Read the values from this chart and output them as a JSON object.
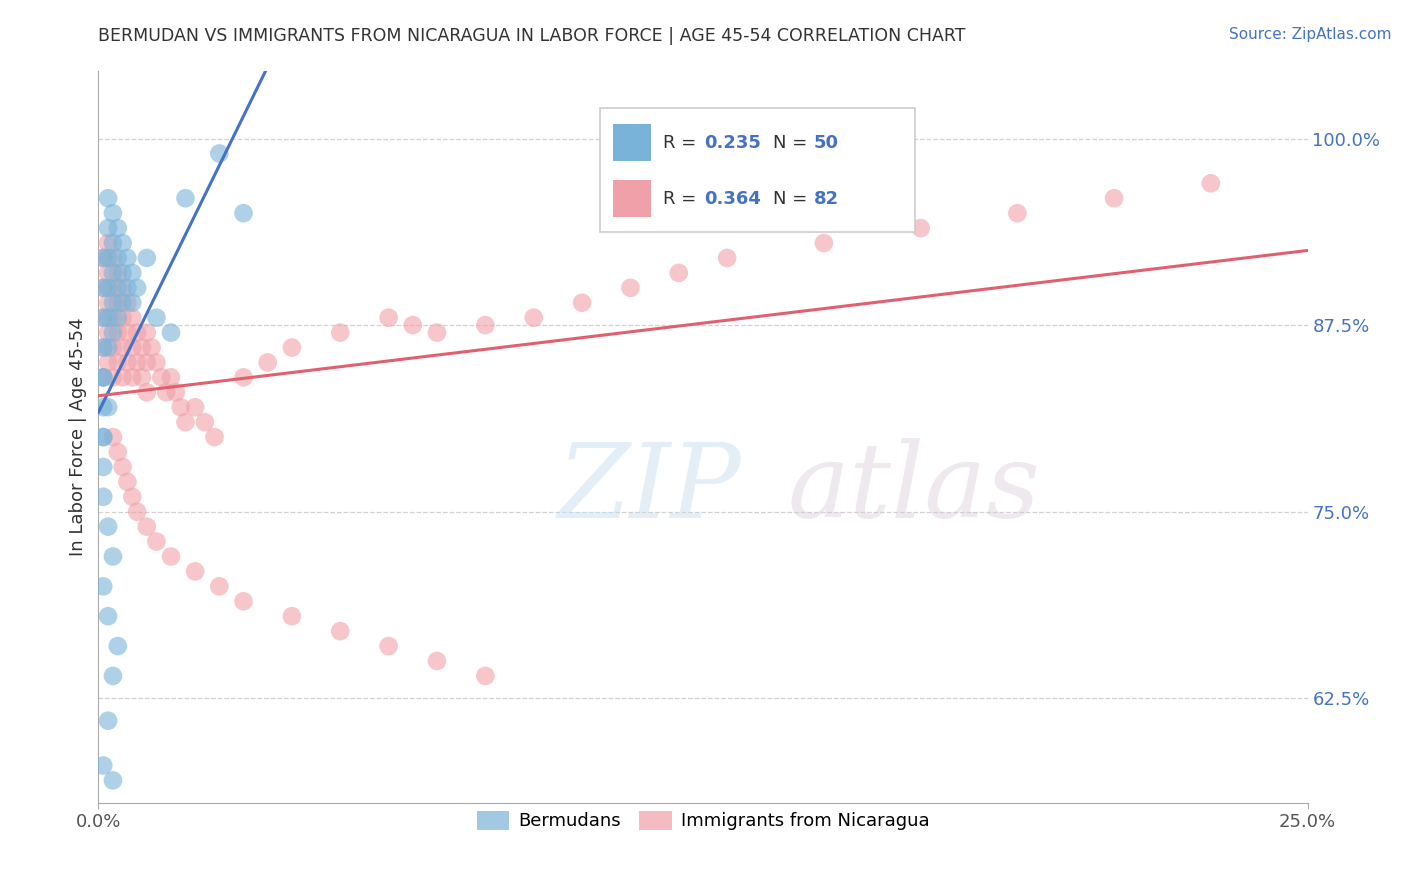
{
  "title": "BERMUDAN VS IMMIGRANTS FROM NICARAGUA IN LABOR FORCE | AGE 45-54 CORRELATION CHART",
  "source": "Source: ZipAtlas.com",
  "ylabel": "In Labor Force | Age 45-54",
  "legend_blue_r": "0.235",
  "legend_blue_n": "50",
  "legend_pink_r": "0.364",
  "legend_pink_n": "82",
  "legend_blue_label": "Bermudans",
  "legend_pink_label": "Immigrants from Nicaragua",
  "title_color": "#333333",
  "source_color": "#4472c4",
  "blue_color": "#7ab3d9",
  "pink_color": "#f0a0a8",
  "blue_line_color": "#4472c4",
  "pink_line_color": "#e06070",
  "grid_color": "#cccccc",
  "background_color": "#ffffff",
  "xlim": [
    0.0,
    0.25
  ],
  "ylim": [
    0.555,
    1.045
  ],
  "yticks": [
    0.625,
    0.75,
    0.875,
    1.0
  ],
  "ytick_labels": [
    "62.5%",
    "75.0%",
    "87.5%",
    "100.0%"
  ],
  "xticks": [
    0.0,
    0.25
  ],
  "xtick_labels": [
    "0.0%",
    "25.0%"
  ],
  "blue_x": [
    0.001,
    0.001,
    0.001,
    0.001,
    0.001,
    0.001,
    0.001,
    0.001,
    0.002,
    0.002,
    0.002,
    0.002,
    0.002,
    0.002,
    0.003,
    0.003,
    0.003,
    0.003,
    0.003,
    0.004,
    0.004,
    0.004,
    0.004,
    0.005,
    0.005,
    0.005,
    0.006,
    0.006,
    0.007,
    0.007,
    0.008,
    0.01,
    0.012,
    0.015,
    0.018,
    0.025,
    0.03,
    0.001,
    0.002,
    0.003,
    0.001,
    0.002,
    0.001,
    0.001,
    0.002,
    0.001,
    0.002,
    0.003,
    0.004,
    0.003
  ],
  "blue_y": [
    0.92,
    0.9,
    0.88,
    0.86,
    0.84,
    0.82,
    0.8,
    0.78,
    0.96,
    0.94,
    0.92,
    0.9,
    0.88,
    0.86,
    0.95,
    0.93,
    0.91,
    0.89,
    0.87,
    0.94,
    0.92,
    0.9,
    0.88,
    0.93,
    0.91,
    0.89,
    0.92,
    0.9,
    0.91,
    0.89,
    0.9,
    0.92,
    0.88,
    0.87,
    0.96,
    0.99,
    0.95,
    0.76,
    0.74,
    0.72,
    0.7,
    0.68,
    0.8,
    0.84,
    0.82,
    0.58,
    0.61,
    0.64,
    0.66,
    0.57
  ],
  "pink_x": [
    0.001,
    0.001,
    0.001,
    0.001,
    0.001,
    0.002,
    0.002,
    0.002,
    0.002,
    0.002,
    0.003,
    0.003,
    0.003,
    0.003,
    0.003,
    0.004,
    0.004,
    0.004,
    0.004,
    0.005,
    0.005,
    0.005,
    0.005,
    0.006,
    0.006,
    0.006,
    0.007,
    0.007,
    0.007,
    0.008,
    0.008,
    0.009,
    0.009,
    0.01,
    0.01,
    0.01,
    0.011,
    0.012,
    0.013,
    0.014,
    0.015,
    0.016,
    0.017,
    0.018,
    0.02,
    0.022,
    0.024,
    0.03,
    0.035,
    0.04,
    0.05,
    0.06,
    0.065,
    0.07,
    0.08,
    0.09,
    0.1,
    0.11,
    0.12,
    0.13,
    0.15,
    0.17,
    0.19,
    0.21,
    0.23,
    0.003,
    0.004,
    0.005,
    0.006,
    0.007,
    0.008,
    0.01,
    0.012,
    0.015,
    0.02,
    0.025,
    0.03,
    0.04,
    0.05,
    0.06,
    0.07,
    0.08
  ],
  "pink_y": [
    0.92,
    0.9,
    0.88,
    0.86,
    0.84,
    0.93,
    0.91,
    0.89,
    0.87,
    0.85,
    0.92,
    0.9,
    0.88,
    0.86,
    0.84,
    0.91,
    0.89,
    0.87,
    0.85,
    0.9,
    0.88,
    0.86,
    0.84,
    0.89,
    0.87,
    0.85,
    0.88,
    0.86,
    0.84,
    0.87,
    0.85,
    0.86,
    0.84,
    0.87,
    0.85,
    0.83,
    0.86,
    0.85,
    0.84,
    0.83,
    0.84,
    0.83,
    0.82,
    0.81,
    0.82,
    0.81,
    0.8,
    0.84,
    0.85,
    0.86,
    0.87,
    0.88,
    0.875,
    0.87,
    0.875,
    0.88,
    0.89,
    0.9,
    0.91,
    0.92,
    0.93,
    0.94,
    0.95,
    0.96,
    0.97,
    0.8,
    0.79,
    0.78,
    0.77,
    0.76,
    0.75,
    0.74,
    0.73,
    0.72,
    0.71,
    0.7,
    0.69,
    0.68,
    0.67,
    0.66,
    0.65,
    0.64
  ]
}
